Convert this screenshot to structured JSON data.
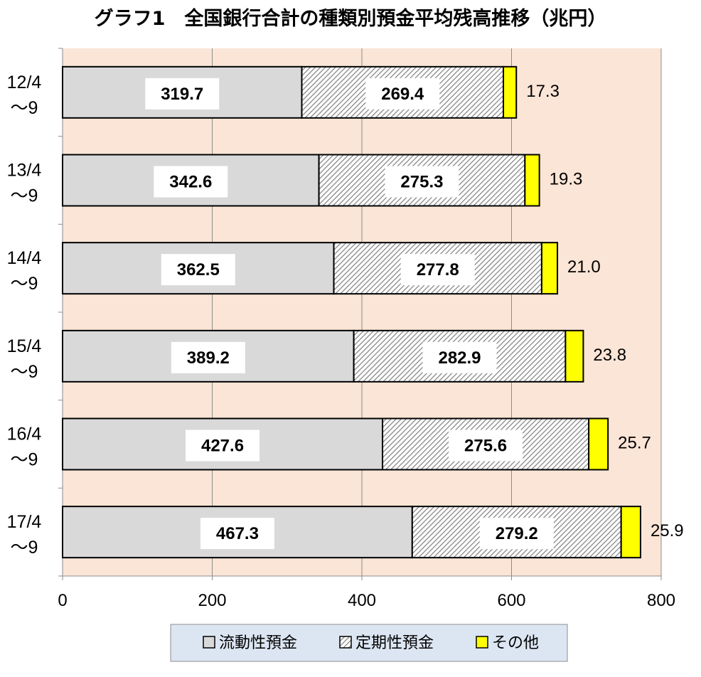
{
  "chart_data": {
    "type": "bar",
    "orientation": "horizontal",
    "stacked": true,
    "title": "グラフ1　全国銀行合計の種類別預金平均残高推移（兆円）",
    "categories": [
      [
        "12/4",
        "～9"
      ],
      [
        "13/4",
        "～9"
      ],
      [
        "14/4",
        "～9"
      ],
      [
        "15/4",
        "～9"
      ],
      [
        "16/4",
        "～9"
      ],
      [
        "17/4",
        "～9"
      ]
    ],
    "series": [
      {
        "name": "流動性預金",
        "values": [
          319.7,
          342.6,
          362.5,
          389.2,
          427.6,
          467.3
        ],
        "color": "#d9d9d9",
        "pattern": "solid"
      },
      {
        "name": "定期性預金",
        "values": [
          269.4,
          275.3,
          277.8,
          282.9,
          275.6,
          279.2
        ],
        "color": "#ffffff",
        "pattern": "diagonal-hatch"
      },
      {
        "name": "その他",
        "values": [
          17.3,
          19.3,
          21.0,
          23.8,
          25.7,
          25.9
        ],
        "color": "#ffff00",
        "pattern": "solid"
      }
    ],
    "value_labels": {
      "流動性預金": [
        "319.7",
        "342.6",
        "362.5",
        "389.2",
        "427.6",
        "467.3"
      ],
      "定期性預金": [
        "269.4",
        "275.3",
        "277.8",
        "282.9",
        "275.6",
        "279.2"
      ],
      "その他": [
        "17.3",
        "19.3",
        "21.0",
        "23.8",
        "25.7",
        "25.9"
      ]
    },
    "xlim": [
      0,
      800
    ],
    "xticks": [
      "0",
      "200",
      "400",
      "600",
      "800"
    ],
    "grid": true,
    "legend_position": "bottom",
    "plot_background": "#fbe5d6",
    "legend_background": "#dce6f2"
  }
}
